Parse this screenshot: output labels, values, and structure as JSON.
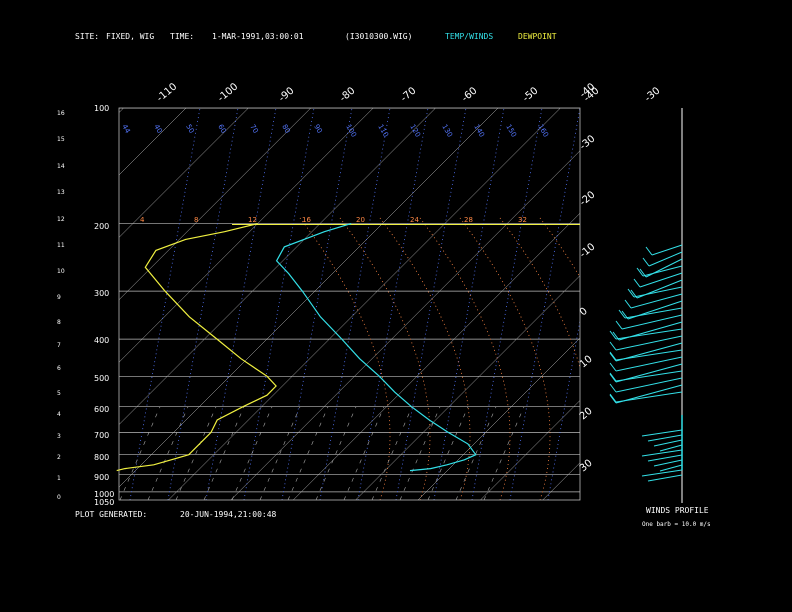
{
  "header": {
    "site_label": "SITE:",
    "site_value": "FIXED, WIG",
    "time_label": "TIME:",
    "time_value": "1-MAR-1991,03:00:01",
    "file_id": "(I3010300.WIG)",
    "legend_temp": "TEMP/WINDS",
    "legend_dew": "DEWPOINT"
  },
  "footer": {
    "generated_label": "PLOT GENERATED:",
    "generated_value": "20-JUN-1994,21:00:48"
  },
  "winds": {
    "title": "WINDS PROFILE",
    "note": "One barb = 10.0 m/s"
  },
  "colors": {
    "background": "#000000",
    "temp": "#33e0e8",
    "dewpoint": "#f0f040",
    "isotherm": "#bbbbbb",
    "isobar": "#bbbbbb",
    "mixing_ratio": "#5577ff",
    "dry_adiabat": "#ff8844",
    "labels": "#ffffff"
  },
  "chart_data": {
    "type": "line",
    "subtype": "skew-t-log-p",
    "left_axis_km": [
      "0",
      "1",
      "2",
      "3",
      "4",
      "5",
      "6",
      "7",
      "8",
      "9",
      "10",
      "11",
      "12",
      "13",
      "14",
      "15",
      "16"
    ],
    "pressure_levels": [
      "100",
      "200",
      "300",
      "400",
      "500",
      "600",
      "700",
      "800",
      "900",
      "1000",
      "1050"
    ],
    "isotherm_labels": [
      "-110",
      "-100",
      "-90",
      "-80",
      "-70",
      "-60",
      "-50",
      "-40",
      "-30",
      "-20",
      "-10",
      "0",
      "10",
      "20",
      "30"
    ],
    "mixing_ratio_labels_top": [
      "44",
      "40",
      "50",
      "60",
      "70",
      "80",
      "90",
      "100",
      "110",
      "120",
      "130",
      "140",
      "150",
      "160"
    ],
    "potential_temp_labels": [
      "4",
      "8",
      "12",
      "16",
      "20",
      "24",
      "28",
      "32"
    ],
    "series": [
      {
        "name": "TEMP/WINDS",
        "color": "#33e0e8",
        "points_p_t": [
          [
            200,
            -55
          ],
          [
            210,
            -58
          ],
          [
            230,
            -62
          ],
          [
            250,
            -61
          ],
          [
            270,
            -57
          ],
          [
            300,
            -52
          ],
          [
            350,
            -45
          ],
          [
            400,
            -38
          ],
          [
            450,
            -32
          ],
          [
            500,
            -26
          ],
          [
            550,
            -21
          ],
          [
            600,
            -16
          ],
          [
            650,
            -11
          ],
          [
            700,
            -6
          ],
          [
            750,
            -1
          ],
          [
            800,
            2
          ],
          [
            825,
            1
          ],
          [
            850,
            -1
          ],
          [
            870,
            -3
          ],
          [
            880,
            -6
          ]
        ]
      },
      {
        "name": "DEWPOINT",
        "color": "#f0f040",
        "points_p_t": [
          [
            200,
            -70
          ],
          [
            210,
            -74
          ],
          [
            220,
            -79
          ],
          [
            235,
            -82
          ],
          [
            260,
            -81
          ],
          [
            300,
            -74
          ],
          [
            350,
            -66
          ],
          [
            400,
            -58
          ],
          [
            450,
            -51
          ],
          [
            500,
            -44
          ],
          [
            530,
            -41
          ],
          [
            560,
            -41
          ],
          [
            600,
            -43
          ],
          [
            650,
            -45
          ],
          [
            700,
            -44
          ],
          [
            750,
            -44
          ],
          [
            780,
            -44
          ],
          [
            800,
            -44
          ],
          [
            825,
            -46
          ],
          [
            850,
            -48
          ],
          [
            870,
            -52
          ],
          [
            880,
            -53
          ]
        ]
      }
    ],
    "winds_profile": {
      "title": "WINDS PROFILE"
    }
  }
}
